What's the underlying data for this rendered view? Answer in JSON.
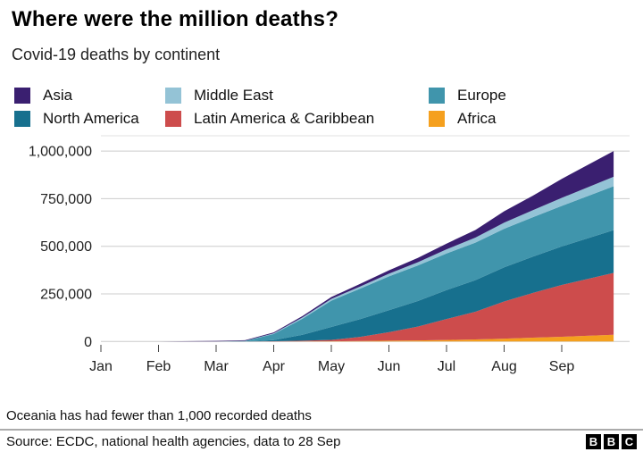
{
  "header": {
    "title": "Where were the million deaths?",
    "subtitle": "Covid-19 deaths by continent"
  },
  "legend": {
    "order": [
      "Asia",
      "Middle East",
      "Europe",
      "North America",
      "Latin America & Caribbean",
      "Africa"
    ]
  },
  "chart_data": {
    "type": "area",
    "stacked": true,
    "title": "Covid-19 deaths by continent",
    "xlabel": "",
    "ylabel": "",
    "ylim": [
      0,
      1000000
    ],
    "grid": "horizontal",
    "legend_position": "top",
    "x_unit": "months since 1 Jan 2020 (data to 28 Sep)",
    "x": [
      0,
      1,
      2,
      2.5,
      3,
      3.5,
      4,
      4.5,
      5,
      5.5,
      6,
      6.5,
      7,
      7.5,
      8,
      8.9
    ],
    "series": [
      {
        "name": "Africa",
        "color": "#f5a01e",
        "values": [
          0,
          0,
          0,
          0,
          200,
          800,
          1500,
          2500,
          4000,
          5500,
          8000,
          11000,
          15000,
          20000,
          25000,
          35000
        ]
      },
      {
        "name": "Latin America & Caribbean",
        "color": "#cd4c4c",
        "values": [
          0,
          0,
          0,
          0,
          1000,
          3500,
          7000,
          22000,
          45000,
          73000,
          110000,
          145000,
          195000,
          235000,
          272000,
          325000
        ]
      },
      {
        "name": "North America",
        "color": "#17708e",
        "values": [
          0,
          0,
          0,
          100,
          6000,
          31000,
          68000,
          93000,
          115000,
          134000,
          152000,
          166000,
          180000,
          191000,
          202000,
          225000
        ]
      },
      {
        "name": "Europe",
        "color": "#4095ac",
        "values": [
          0,
          0,
          100,
          2300,
          32000,
          85000,
          138000,
          160000,
          178000,
          186000,
          192000,
          197000,
          202000,
          207000,
          213000,
          230000
        ]
      },
      {
        "name": "Middle East",
        "color": "#94c3d6",
        "values": [
          0,
          0,
          100,
          1000,
          4000,
          6500,
          9000,
          11500,
          14000,
          17500,
          22000,
          26500,
          32000,
          37000,
          42000,
          50000
        ]
      },
      {
        "name": "Asia",
        "color": "#3a1f70",
        "values": [
          0,
          300,
          2900,
          3400,
          4500,
          7000,
          10000,
          13500,
          18000,
          23000,
          30000,
          40000,
          60000,
          76000,
          100000,
          135000
        ]
      }
    ],
    "x_ticks": [
      {
        "label": "Jan",
        "t": 0
      },
      {
        "label": "Feb",
        "t": 1
      },
      {
        "label": "Mar",
        "t": 2
      },
      {
        "label": "Apr",
        "t": 3
      },
      {
        "label": "May",
        "t": 4
      },
      {
        "label": "Jun",
        "t": 5
      },
      {
        "label": "Jul",
        "t": 6
      },
      {
        "label": "Aug",
        "t": 7
      },
      {
        "label": "Sep",
        "t": 8
      }
    ],
    "y_ticks": [
      {
        "label": "1,000,000",
        "value": 1000000
      },
      {
        "label": "750,000",
        "value": 750000
      },
      {
        "label": "500,000",
        "value": 500000
      },
      {
        "label": "250,000",
        "value": 250000
      },
      {
        "label": "0",
        "value": 0
      }
    ]
  },
  "footnote": "Oceania has had fewer than 1,000 recorded deaths",
  "source": "Source: ECDC, national health agencies, data to 28 Sep",
  "branding": {
    "letters": [
      "B",
      "B",
      "C"
    ]
  },
  "colors": {
    "gridline": "#cccccc",
    "plot_top_border": "#e2e2e2",
    "axis_text": "#222222",
    "tick_mark": "#444444"
  }
}
